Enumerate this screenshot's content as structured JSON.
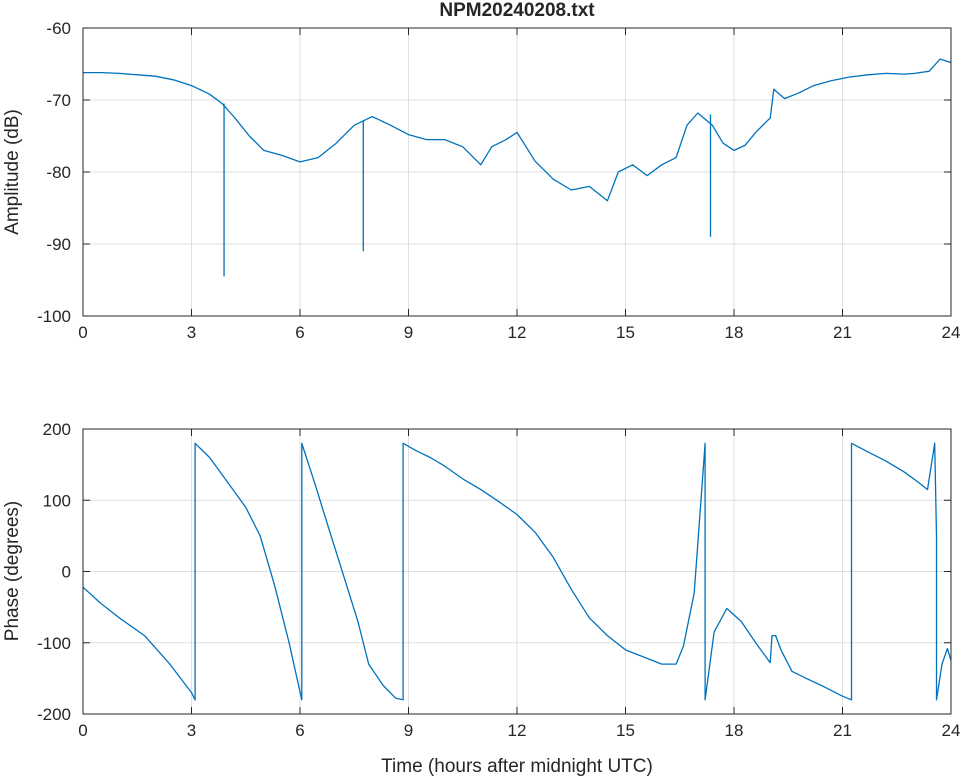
{
  "chart_data": [
    {
      "type": "line",
      "title": "NPM20240208.txt",
      "xlabel": "",
      "ylabel": "Amplitude (dB)",
      "xlim": [
        0,
        24
      ],
      "ylim": [
        -100,
        -60
      ],
      "grid": true,
      "xticks": [
        "0",
        "3",
        "6",
        "9",
        "12",
        "15",
        "18",
        "21",
        "24"
      ],
      "yticks": [
        "-60",
        "-70",
        "-80",
        "-90",
        "-100"
      ],
      "series": [
        {
          "name": "Amplitude",
          "color": "#0072bd",
          "x": [
            0,
            0.5,
            1.0,
            1.5,
            2.0,
            2.5,
            3.0,
            3.5,
            3.85,
            4.2,
            4.6,
            5.0,
            5.5,
            6.0,
            6.5,
            7.0,
            7.5,
            8.0,
            8.5,
            9.0,
            9.5,
            10.0,
            10.5,
            11.0,
            11.3,
            11.7,
            12.0,
            12.5,
            13.0,
            13.5,
            14.0,
            14.5,
            14.8,
            15.2,
            15.6,
            16.0,
            16.4,
            16.7,
            17.0,
            17.4,
            17.7,
            18.0,
            18.3,
            18.6,
            18.9,
            19.0,
            19.1,
            19.4,
            19.8,
            20.2,
            20.7,
            21.2,
            21.7,
            22.2,
            22.7,
            23.0,
            23.4,
            23.7,
            24.0
          ],
          "y": [
            -66.2,
            -66.2,
            -66.3,
            -66.5,
            -66.7,
            -67.2,
            -68.0,
            -69.2,
            -70.5,
            -72.5,
            -75.0,
            -77.0,
            -77.7,
            -78.6,
            -78.0,
            -76.0,
            -73.5,
            -72.3,
            -73.5,
            -74.8,
            -75.5,
            -75.5,
            -76.5,
            -79.0,
            -76.5,
            -75.5,
            -74.5,
            -78.5,
            -81.0,
            -82.5,
            -82.0,
            -84.0,
            -80.0,
            -79.0,
            -80.5,
            -79.0,
            -78.0,
            -73.5,
            -71.8,
            -73.5,
            -76.0,
            -77.0,
            -76.3,
            -74.5,
            -73.0,
            -72.5,
            -68.5,
            -69.8,
            -69.0,
            -68.0,
            -67.3,
            -66.8,
            -66.5,
            -66.3,
            -66.4,
            -66.3,
            -66.0,
            -64.3,
            -64.8
          ]
        }
      ],
      "spikes": [
        {
          "x": 3.9,
          "from": -70.5,
          "to": -94.5
        },
        {
          "x": 7.75,
          "from": -72.8,
          "to": -91.0
        },
        {
          "x": 17.35,
          "from": -72.0,
          "to": -89.0
        }
      ]
    },
    {
      "type": "line",
      "title": "",
      "xlabel": "Time (hours after midnight UTC)",
      "ylabel": "Phase (degrees)",
      "xlim": [
        0,
        24
      ],
      "ylim": [
        -200,
        200
      ],
      "grid": true,
      "xticks": [
        "0",
        "3",
        "6",
        "9",
        "12",
        "15",
        "18",
        "21",
        "24"
      ],
      "yticks": [
        "200",
        "100",
        "0",
        "-100",
        "-200"
      ],
      "series": [
        {
          "name": "Phase",
          "color": "#0072bd",
          "x": [
            0,
            0.5,
            1.0,
            1.7,
            2.4,
            3.0,
            3.1,
            3.1,
            3.5,
            4.0,
            4.5,
            4.9,
            5.3,
            5.7,
            6.05,
            6.05,
            6.4,
            6.8,
            7.2,
            7.6,
            7.9,
            8.3,
            8.65,
            8.85,
            8.85,
            9.2,
            9.6,
            10.0,
            10.5,
            11.0,
            11.5,
            12.0,
            12.5,
            13.0,
            13.5,
            14.0,
            14.5,
            15.0,
            15.5,
            16.0,
            16.4,
            16.6,
            16.9,
            17.1,
            17.2,
            17.2,
            17.45,
            17.8,
            18.2,
            18.6,
            19.0,
            19.05,
            19.15,
            19.3,
            19.6,
            20.0,
            20.5,
            21.0,
            21.25,
            21.25,
            21.7,
            22.2,
            22.7,
            23.1,
            23.35,
            23.55,
            23.6,
            23.6,
            23.75,
            23.9,
            24.0
          ],
          "y": [
            -22,
            -45,
            -65,
            -90,
            -130,
            -170,
            -180,
            180,
            160,
            125,
            90,
            50,
            -20,
            -100,
            -180,
            180,
            125,
            60,
            -5,
            -70,
            -130,
            -160,
            -178,
            -180,
            180,
            170,
            160,
            148,
            130,
            115,
            98,
            80,
            55,
            20,
            -25,
            -65,
            -90,
            -110,
            -120,
            -130,
            -130,
            -105,
            -30,
            110,
            180,
            -180,
            -85,
            -52,
            -70,
            -100,
            -128,
            -90,
            -90,
            -110,
            -140,
            -150,
            -162,
            -175,
            -180,
            180,
            168,
            155,
            140,
            125,
            115,
            180,
            50,
            -180,
            -130,
            -108,
            -125
          ]
        }
      ]
    }
  ]
}
